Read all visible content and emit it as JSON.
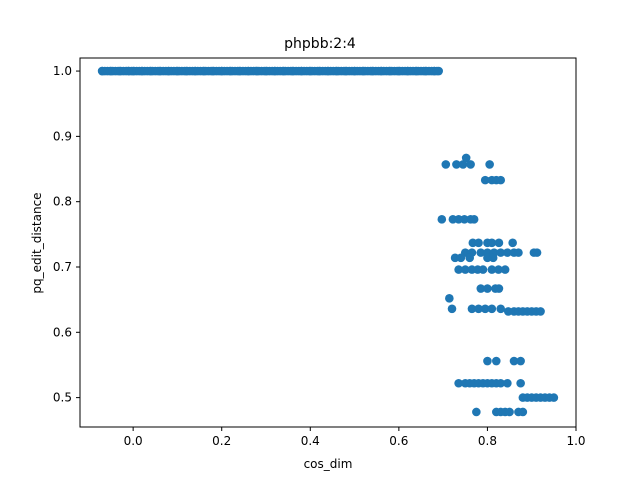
{
  "chart_data": {
    "type": "scatter",
    "title": "phpbb:2:4",
    "xlabel": "cos_dim",
    "ylabel": "pq_edit_distance",
    "xlim": [
      -0.12,
      1.0
    ],
    "ylim": [
      0.455,
      1.02
    ],
    "x_ticks": [
      0.0,
      0.2,
      0.4,
      0.6,
      0.8,
      1.0
    ],
    "y_ticks": [
      0.5,
      0.6,
      0.7,
      0.8,
      0.9,
      1.0
    ],
    "x_tick_labels": [
      "0.0",
      "0.2",
      "0.4",
      "0.6",
      "0.8",
      "1.0"
    ],
    "y_tick_labels": [
      "0.5",
      "0.6",
      "0.7",
      "0.8",
      "0.9",
      "1.0"
    ],
    "grid": false,
    "color": "#1f77b4",
    "series": [
      {
        "x_top_band": [
          -0.07,
          -0.05,
          -0.03,
          -0.01,
          0.0,
          0.02,
          0.04,
          0.06,
          0.08,
          0.1,
          0.12,
          0.14,
          0.16,
          0.18,
          0.2,
          0.22,
          0.24,
          0.26,
          0.28,
          0.3,
          0.32,
          0.34,
          0.36,
          0.38,
          0.4,
          0.42,
          0.44,
          0.46,
          0.48,
          0.5,
          0.52,
          0.54,
          0.56,
          0.58,
          0.6,
          0.62,
          0.64,
          0.66,
          0.68,
          0.69
        ],
        "y_top_band": 1.0,
        "points": [
          [
            0.706,
            0.857
          ],
          [
            0.73,
            0.857
          ],
          [
            0.745,
            0.857
          ],
          [
            0.752,
            0.867
          ],
          [
            0.762,
            0.857
          ],
          [
            0.805,
            0.857
          ],
          [
            0.795,
            0.833
          ],
          [
            0.81,
            0.833
          ],
          [
            0.82,
            0.833
          ],
          [
            0.83,
            0.833
          ],
          [
            0.697,
            0.773
          ],
          [
            0.722,
            0.773
          ],
          [
            0.735,
            0.773
          ],
          [
            0.748,
            0.773
          ],
          [
            0.762,
            0.773
          ],
          [
            0.77,
            0.773
          ],
          [
            0.767,
            0.737
          ],
          [
            0.78,
            0.737
          ],
          [
            0.8,
            0.737
          ],
          [
            0.81,
            0.737
          ],
          [
            0.826,
            0.737
          ],
          [
            0.857,
            0.737
          ],
          [
            0.75,
            0.722
          ],
          [
            0.765,
            0.722
          ],
          [
            0.785,
            0.722
          ],
          [
            0.8,
            0.722
          ],
          [
            0.815,
            0.722
          ],
          [
            0.83,
            0.722
          ],
          [
            0.845,
            0.722
          ],
          [
            0.86,
            0.722
          ],
          [
            0.87,
            0.722
          ],
          [
            0.905,
            0.722
          ],
          [
            0.912,
            0.722
          ],
          [
            0.727,
            0.714
          ],
          [
            0.74,
            0.714
          ],
          [
            0.76,
            0.714
          ],
          [
            0.8,
            0.714
          ],
          [
            0.813,
            0.714
          ],
          [
            0.735,
            0.696
          ],
          [
            0.75,
            0.696
          ],
          [
            0.765,
            0.696
          ],
          [
            0.778,
            0.696
          ],
          [
            0.79,
            0.696
          ],
          [
            0.81,
            0.696
          ],
          [
            0.825,
            0.696
          ],
          [
            0.84,
            0.696
          ],
          [
            0.785,
            0.667
          ],
          [
            0.8,
            0.667
          ],
          [
            0.818,
            0.667
          ],
          [
            0.826,
            0.667
          ],
          [
            0.714,
            0.652
          ],
          [
            0.72,
            0.636
          ],
          [
            0.765,
            0.636
          ],
          [
            0.78,
            0.636
          ],
          [
            0.795,
            0.636
          ],
          [
            0.81,
            0.636
          ],
          [
            0.83,
            0.636
          ],
          [
            0.847,
            0.632
          ],
          [
            0.86,
            0.632
          ],
          [
            0.87,
            0.632
          ],
          [
            0.88,
            0.632
          ],
          [
            0.89,
            0.632
          ],
          [
            0.9,
            0.632
          ],
          [
            0.91,
            0.632
          ],
          [
            0.92,
            0.632
          ],
          [
            0.8,
            0.556
          ],
          [
            0.82,
            0.556
          ],
          [
            0.86,
            0.556
          ],
          [
            0.875,
            0.556
          ],
          [
            0.735,
            0.522
          ],
          [
            0.75,
            0.522
          ],
          [
            0.76,
            0.522
          ],
          [
            0.77,
            0.522
          ],
          [
            0.78,
            0.522
          ],
          [
            0.79,
            0.522
          ],
          [
            0.8,
            0.522
          ],
          [
            0.81,
            0.522
          ],
          [
            0.82,
            0.522
          ],
          [
            0.83,
            0.522
          ],
          [
            0.845,
            0.522
          ],
          [
            0.875,
            0.522
          ],
          [
            0.88,
            0.5
          ],
          [
            0.89,
            0.5
          ],
          [
            0.9,
            0.5
          ],
          [
            0.91,
            0.5
          ],
          [
            0.92,
            0.5
          ],
          [
            0.93,
            0.5
          ],
          [
            0.94,
            0.5
          ],
          [
            0.95,
            0.5
          ],
          [
            0.775,
            0.478
          ],
          [
            0.82,
            0.478
          ],
          [
            0.83,
            0.478
          ],
          [
            0.84,
            0.478
          ],
          [
            0.85,
            0.478
          ],
          [
            0.87,
            0.478
          ],
          [
            0.88,
            0.478
          ]
        ]
      }
    ]
  }
}
